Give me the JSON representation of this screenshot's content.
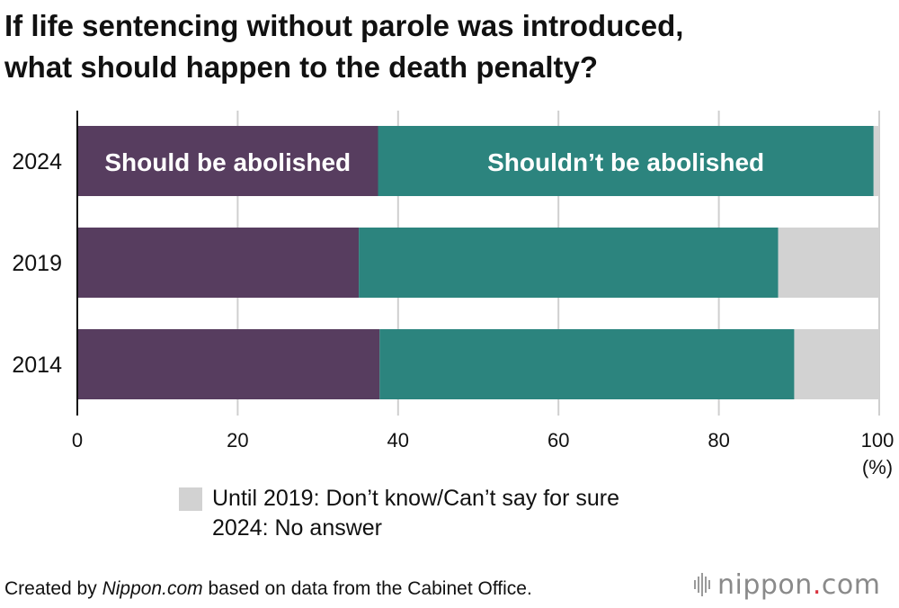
{
  "title_lines": [
    "If life sentencing without parole was introduced,",
    "what should happen to the death penalty?"
  ],
  "chart_data": {
    "type": "bar",
    "orientation": "horizontal",
    "stacked": true,
    "categories": [
      "2024",
      "2019",
      "2014"
    ],
    "series": [
      {
        "name": "Should be abolished",
        "values": [
          37.5,
          35.1,
          37.7
        ],
        "color": "#573d5f"
      },
      {
        "name": "Shouldn’t be abolished",
        "values": [
          61.8,
          52.3,
          51.7
        ],
        "color": "#2c847e"
      },
      {
        "name": "",
        "values": [
          0.7,
          12.6,
          10.6
        ],
        "color": "#d2d2d2"
      }
    ],
    "xlim": [
      0,
      100
    ],
    "xticks": [
      "0",
      "20",
      "40",
      "60",
      "80",
      "100"
    ],
    "xunit": "(%)",
    "grid": true,
    "xlabel": "",
    "ylabel": ""
  },
  "legend": {
    "swatch_color": "#d2d2d2",
    "lines": [
      "Until 2019: Don’t know/Can’t say for sure",
      "2024: No answer"
    ]
  },
  "footer": {
    "prefix": "Created by ",
    "site": "Nippon.com",
    "suffix": " based on data from the Cabinet Office."
  },
  "logo": {
    "name": "nippon",
    "dot": ".",
    "tld": "com"
  }
}
